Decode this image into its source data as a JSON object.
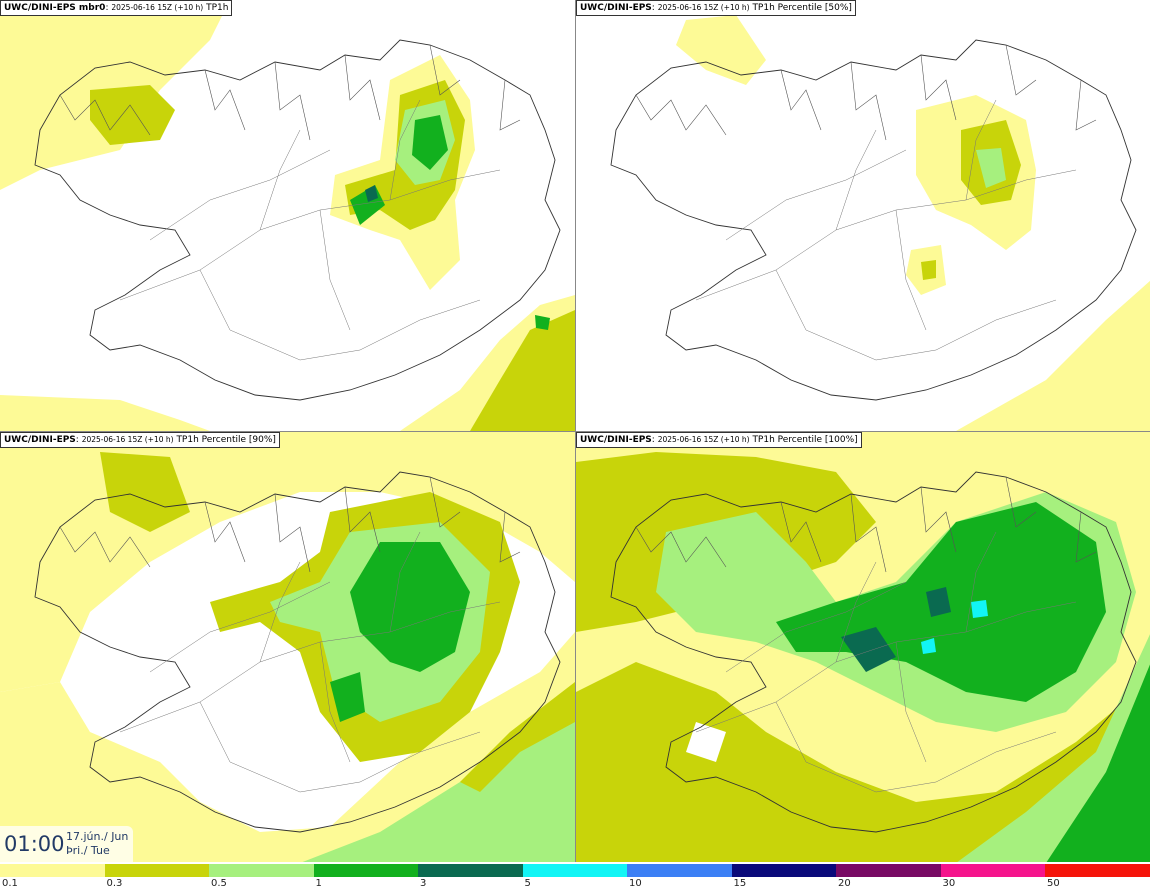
{
  "panels": [
    {
      "model": "UWC/DINI-EPS mbr0",
      "timestamp": "2025-06-16 15Z (+10 h)",
      "field": "TP1h"
    },
    {
      "model": "UWC/DINI-EPS",
      "timestamp": "2025-06-16 15Z (+10 h)",
      "field": "TP1h Percentile [50%]"
    },
    {
      "model": "UWC/DINI-EPS",
      "timestamp": "2025-06-16 15Z (+10 h)",
      "field": "TP1h Percentile [90%]"
    },
    {
      "model": "UWC/DINI-EPS",
      "timestamp": "2025-06-16 15Z (+10 h)",
      "field": "TP1h Percentile [100%]"
    }
  ],
  "clock": {
    "time": "01:00",
    "date_line1": "17.jún./ Jun",
    "date_line2": "Þri./ Tue"
  },
  "scale": {
    "ticks": [
      "0.1",
      "0.3",
      "0.5",
      "1",
      "3",
      "5",
      "10",
      "15",
      "20",
      "30",
      "50"
    ],
    "colors": [
      "#fdfa96",
      "#c8d40a",
      "#a6f07e",
      "#12b01e",
      "#0a6a50",
      "#12f5f5",
      "#3b7ff5",
      "#0a0a7a",
      "#780a64",
      "#f5148c",
      "#f5140a"
    ]
  }
}
